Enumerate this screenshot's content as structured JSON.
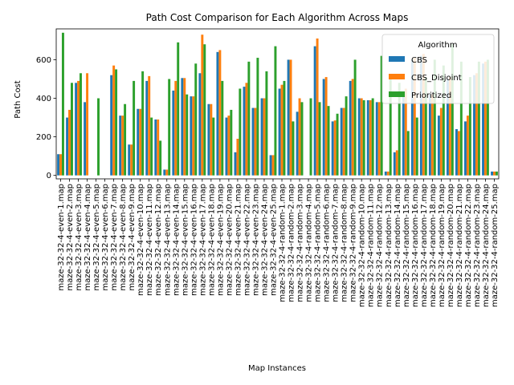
{
  "chart_data": {
    "type": "bar",
    "title": "Path Cost Comparison for Each Algorithm Across Maps",
    "xlabel": "Map Instances",
    "ylabel": "Path Cost",
    "ylim": [
      -18,
      760
    ],
    "yticks": [
      0,
      200,
      400,
      600
    ],
    "grid": false,
    "legend": {
      "title": "Algorithm",
      "position": "top-right"
    },
    "colors": {
      "CBS": "#1f77b4",
      "CBS_Disjoint": "#ff7f0e",
      "Prioritized": "#2ca02c"
    },
    "categories": [
      "maze-32-32-4-even-1.map",
      "maze-32-32-4-even-2.map",
      "maze-32-32-4-even-3.map",
      "maze-32-32-4-even-4.map",
      "maze-32-32-4-even-5.map",
      "maze-32-32-4-even-6.map",
      "maze-32-32-4-even-7.map",
      "maze-32-32-4-even-8.map",
      "maze-32-32-4-even-9.map",
      "maze-32-32-4-even-10.map",
      "maze-32-32-4-even-11.map",
      "maze-32-32-4-even-12.map",
      "maze-32-32-4-even-13.map",
      "maze-32-32-4-even-14.map",
      "maze-32-32-4-even-15.map",
      "maze-32-32-4-even-16.map",
      "maze-32-32-4-even-17.map",
      "maze-32-32-4-even-18.map",
      "maze-32-32-4-even-19.map",
      "maze-32-32-4-even-20.map",
      "maze-32-32-4-even-21.map",
      "maze-32-32-4-even-22.map",
      "maze-32-32-4-even-23.map",
      "maze-32-32-4-even-24.map",
      "maze-32-32-4-even-25.map",
      "maze-32-32-4-random-1.map",
      "maze-32-32-4-random-2.map",
      "maze-32-32-4-random-3.map",
      "maze-32-32-4-random-4.map",
      "maze-32-32-4-random-5.map",
      "maze-32-32-4-random-6.map",
      "maze-32-32-4-random-7.map",
      "maze-32-32-4-random-8.map",
      "maze-32-32-4-random-9.map",
      "maze-32-32-4-random-10.map",
      "maze-32-32-4-random-11.map",
      "maze-32-32-4-random-12.map",
      "maze-32-32-4-random-13.map",
      "maze-32-32-4-random-14.map",
      "maze-32-32-4-random-15.map",
      "maze-32-32-4-random-16.map",
      "maze-32-32-4-random-17.map",
      "maze-32-32-4-random-18.map",
      "maze-32-32-4-random-19.map",
      "maze-32-32-4-random-20.map",
      "maze-32-32-4-random-21.map",
      "maze-32-32-4-random-22.map",
      "maze-32-32-4-random-23.map",
      "maze-32-32-4-random-24.map",
      "maze-32-32-4-random-25.map"
    ],
    "series": [
      {
        "name": "CBS",
        "values": [
          110,
          300,
          480,
          380,
          0,
          0,
          520,
          310,
          160,
          345,
          490,
          290,
          30,
          440,
          505,
          410,
          530,
          370,
          640,
          300,
          120,
          460,
          350,
          400,
          105,
          450,
          600,
          330,
          0,
          670,
          500,
          280,
          350,
          490,
          400,
          390,
          380,
          20,
          120,
          420,
          600,
          620,
          420,
          310,
          500,
          240,
          280,
          520,
          580,
          20
        ]
      },
      {
        "name": "CBS_Disjoint",
        "values": [
          110,
          340,
          490,
          530,
          0,
          0,
          570,
          310,
          160,
          345,
          515,
          290,
          30,
          490,
          505,
          410,
          730,
          370,
          650,
          310,
          190,
          480,
          350,
          400,
          105,
          470,
          600,
          400,
          0,
          710,
          510,
          285,
          350,
          500,
          400,
          390,
          380,
          20,
          130,
          450,
          610,
          630,
          420,
          350,
          510,
          230,
          310,
          530,
          590,
          20
        ]
      },
      {
        "name": "Prioritized",
        "values": [
          740,
          480,
          530,
          0,
          400,
          0,
          550,
          370,
          490,
          540,
          300,
          180,
          500,
          690,
          420,
          580,
          680,
          300,
          490,
          340,
          450,
          590,
          610,
          540,
          670,
          490,
          280,
          380,
          400,
          380,
          360,
          320,
          410,
          600,
          390,
          400,
          620,
          510,
          480,
          230,
          300,
          510,
          600,
          570,
          680,
          590,
          510,
          590,
          600,
          20
        ]
      }
    ]
  }
}
